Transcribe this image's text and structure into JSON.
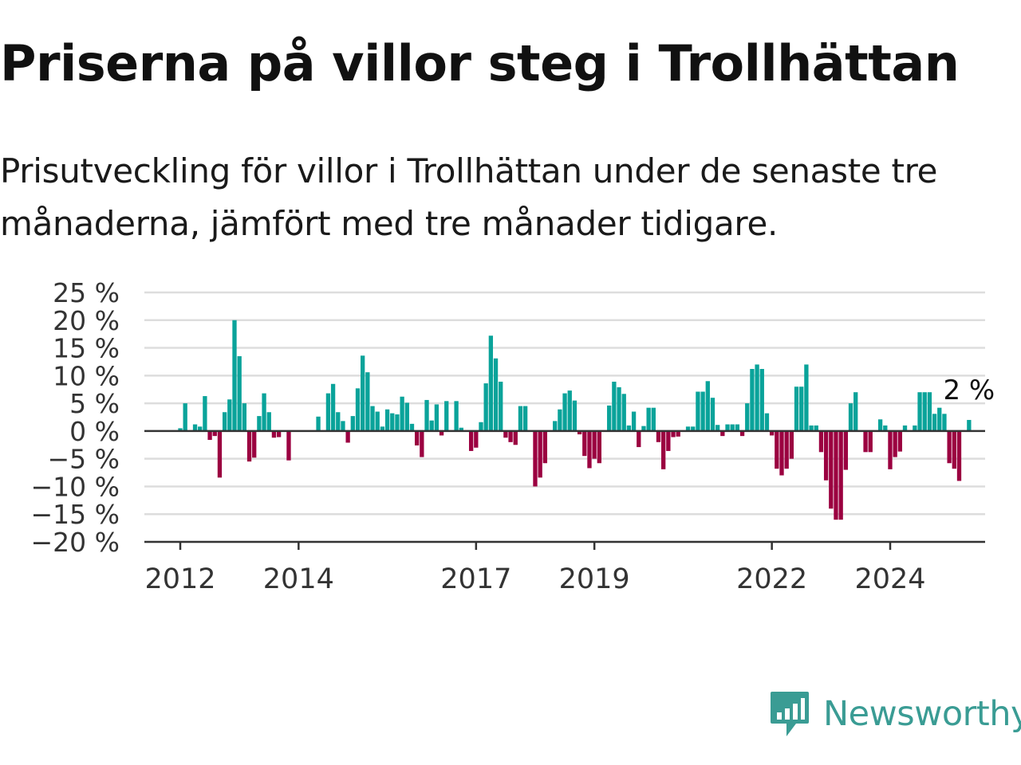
{
  "title": "Priserna på villor steg i Trollhättan",
  "subtitle": "Prisutveckling för villor i Trollhättan under de senaste tre månaderna, jämfört med tre månader tidigare.",
  "brand": {
    "name": "Newsworthy",
    "icon": "newsworthy-logo-icon",
    "color": "#3a9c94"
  },
  "colors": {
    "positive": "#0aa39a",
    "negative": "#9b0040",
    "grid": "#dddddd",
    "axis": "#333333"
  },
  "chart_data": {
    "type": "bar",
    "title": "",
    "xlabel": "",
    "ylabel": "",
    "ylim": [
      -20,
      25
    ],
    "yticks": [
      25,
      20,
      15,
      10,
      5,
      0,
      -5,
      -10,
      -15,
      -20
    ],
    "ytick_labels": [
      "25 %",
      "20 %",
      "15 %",
      "10 %",
      "5 %",
      "0 %",
      "−5 %",
      "−10 %",
      "−15 %",
      "−20 %"
    ],
    "xticks": [
      {
        "label": "2012",
        "x": 2012.0
      },
      {
        "label": "2014",
        "x": 2014.0
      },
      {
        "label": "2017",
        "x": 2017.0
      },
      {
        "label": "2019",
        "x": 2019.0
      },
      {
        "label": "2022",
        "x": 2022.0
      },
      {
        "label": "2024",
        "x": 2024.0
      }
    ],
    "x_range": [
      2011.4,
      2025.6
    ],
    "grid": true,
    "legend": "none",
    "last_value_label": "2 %",
    "x_start": 2012.0,
    "x_step": 0.08333,
    "values": [
      0.5,
      5,
      0,
      1.2,
      0.8,
      6.3,
      -1.6,
      -0.9,
      -8.4,
      3.4,
      5.7,
      20,
      13.5,
      5,
      -5.5,
      -4.8,
      2.7,
      6.8,
      3.4,
      -1.2,
      -1.1,
      0,
      -5.3,
      0,
      0,
      0,
      0,
      0,
      2.6,
      0,
      6.8,
      8.5,
      3.4,
      1.8,
      -2.1,
      2.7,
      7.7,
      13.6,
      10.6,
      4.5,
      3.5,
      0.8,
      3.9,
      3.2,
      3,
      6.2,
      5.1,
      1.3,
      -2.6,
      -4.7,
      5.6,
      1.9,
      4.8,
      -0.8,
      5.4,
      0,
      5.4,
      0.6,
      0,
      -3.6,
      -3,
      1.6,
      8.6,
      17.2,
      13.1,
      8.9,
      -1.2,
      -2,
      -2.5,
      4.5,
      4.5,
      0,
      -10,
      -8.4,
      -5.8,
      0,
      1.8,
      3.9,
      6.8,
      7.3,
      5.5,
      -0.6,
      -4.5,
      -6.7,
      -5,
      -5.8,
      0,
      4.6,
      8.9,
      7.9,
      6.7,
      1,
      3.5,
      -2.9,
      0.9,
      4.2,
      4.2,
      -2,
      -6.9,
      -3.6,
      -1.1,
      -1,
      0,
      0.8,
      0.8,
      7.1,
      7.1,
      9,
      6,
      1.1,
      -0.9,
      1.2,
      1.2,
      1.2,
      -0.9,
      5,
      11.2,
      12,
      11.2,
      3.2,
      -0.8,
      -6.8,
      -8,
      -6.8,
      -5,
      8,
      8,
      12,
      1,
      1,
      -3.8,
      -8.9,
      -14,
      -16,
      -16,
      -7,
      5,
      7,
      0,
      -3.8,
      -3.8,
      0,
      2.1,
      1,
      -6.9,
      -4.7,
      -3.7,
      1,
      0,
      1,
      7,
      7,
      7,
      3.1,
      4.2,
      3.1,
      -5.8,
      -6.8,
      -9,
      0,
      2
    ]
  }
}
